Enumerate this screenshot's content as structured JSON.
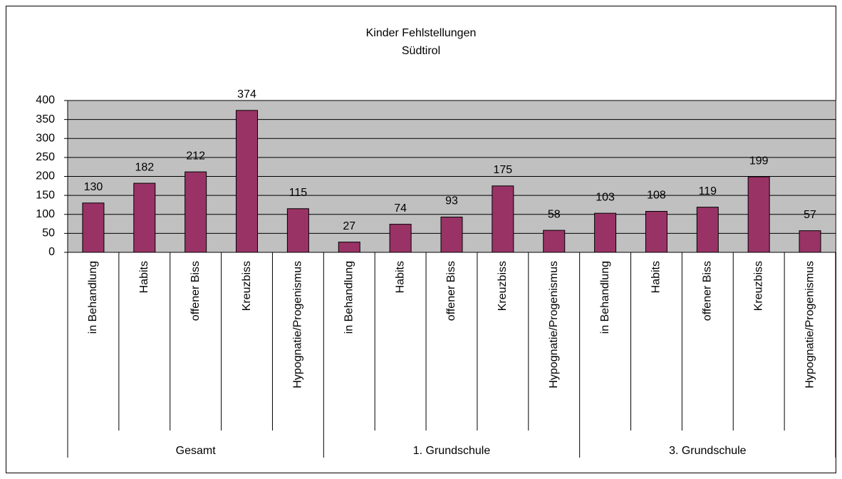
{
  "chart_data": {
    "type": "bar",
    "title": "Kinder Fehlstellungen",
    "subtitle": "Südtirol",
    "categories": [
      "in Behandlung",
      "Habits",
      "offener Biss",
      "Kreuzbiss",
      "Hypognatie/Progenismus",
      "in Behandlung",
      "Habits",
      "offener Biss",
      "Kreuzbiss",
      "Hypognatie/Progenismus",
      "in Behandlung",
      "Habits",
      "offener Biss",
      "Kreuzbiss",
      "Hypognatie/Progenismus"
    ],
    "category_groups": [
      "Gesamt",
      "1. Grundschule",
      "3. Grundschule"
    ],
    "values": [
      130,
      182,
      212,
      374,
      115,
      27,
      74,
      93,
      175,
      58,
      103,
      108,
      119,
      199,
      57
    ],
    "color": "#993366",
    "ylim": [
      0,
      400
    ],
    "yticks": [
      0,
      50,
      100,
      150,
      200,
      250,
      300,
      350,
      400
    ],
    "grid": true
  }
}
